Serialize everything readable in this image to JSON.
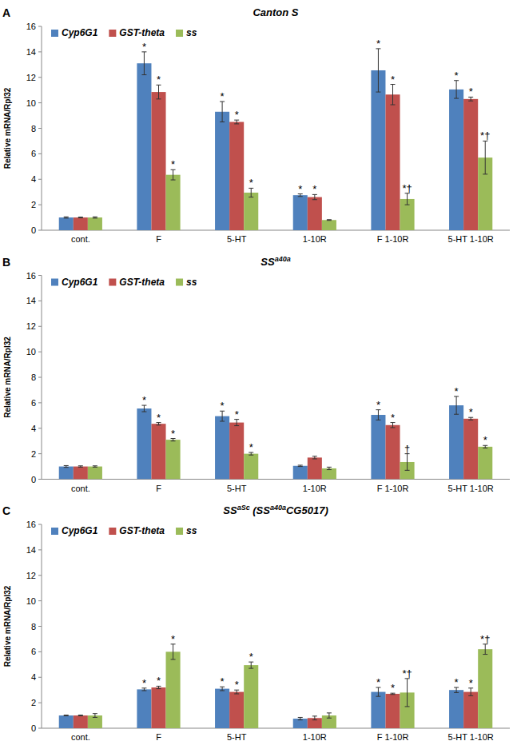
{
  "chart_data": [
    {
      "type": "bar",
      "label": "A",
      "title": [
        {
          "text": "Canton S"
        }
      ],
      "y_label": "Relative mRNA/Rpl32",
      "categories": [
        "cont.",
        "F",
        "5-HT",
        "1-10R",
        "F 1-10R",
        "5-HT 1-10R"
      ],
      "ylim": [
        0,
        16
      ],
      "yticks": [
        0,
        2,
        4,
        6,
        8,
        10,
        12,
        14,
        16
      ],
      "grid": false,
      "legend": "upper left",
      "series": [
        {
          "name": "Cyp6G1",
          "color": "#4f81bd",
          "values": [
            1.0,
            13.1,
            9.3,
            2.75,
            12.55,
            11.05
          ],
          "errors": [
            0.05,
            0.9,
            0.8,
            0.1,
            1.7,
            0.7
          ],
          "significance": [
            null,
            "*",
            "*",
            "*",
            "*",
            "*"
          ]
        },
        {
          "name": "GST-theta",
          "color": "#c0504d",
          "values": [
            1.0,
            10.85,
            8.5,
            2.6,
            10.65,
            10.3
          ],
          "errors": [
            0.03,
            0.55,
            0.15,
            0.2,
            0.8,
            0.15
          ],
          "significance": [
            null,
            "*",
            "*",
            "*",
            "*",
            "*"
          ]
        },
        {
          "name": "ss",
          "color": "#9bbb59",
          "values": [
            1.0,
            4.35,
            2.95,
            0.8,
            2.45,
            5.7
          ],
          "errors": [
            0.05,
            0.4,
            0.35,
            0.03,
            0.45,
            1.3
          ],
          "significance": [
            null,
            "*",
            "*",
            null,
            "*†",
            "*†"
          ]
        }
      ]
    },
    {
      "type": "bar",
      "label": "B",
      "title": [
        {
          "text": "SS"
        },
        {
          "text": "a40a",
          "sup": true
        }
      ],
      "y_label": "Relative mRNA/Rpl32",
      "categories": [
        "cont.",
        "F",
        "5-HT",
        "1-10R",
        "F 1-10R",
        "5-HT 1-10R"
      ],
      "ylim": [
        0,
        16
      ],
      "yticks": [
        0,
        2,
        4,
        6,
        8,
        10,
        12,
        14,
        16
      ],
      "grid": false,
      "legend": "upper left",
      "series": [
        {
          "name": "Cyp6G1",
          "color": "#4f81bd",
          "values": [
            1.0,
            5.55,
            4.95,
            1.05,
            5.05,
            5.8
          ],
          "errors": [
            0.07,
            0.25,
            0.4,
            0.05,
            0.4,
            0.7
          ],
          "significance": [
            null,
            "*",
            "*",
            null,
            "*",
            "*"
          ]
        },
        {
          "name": "GST-theta",
          "color": "#c0504d",
          "values": [
            1.0,
            4.35,
            4.45,
            1.7,
            4.25,
            4.75
          ],
          "errors": [
            0.05,
            0.1,
            0.25,
            0.1,
            0.2,
            0.1
          ],
          "significance": [
            null,
            "*",
            "*",
            null,
            "*",
            "*"
          ]
        },
        {
          "name": "ss",
          "color": "#9bbb59",
          "values": [
            1.0,
            3.1,
            2.0,
            0.85,
            1.35,
            2.55
          ],
          "errors": [
            0.05,
            0.1,
            0.1,
            0.1,
            0.65,
            0.1
          ],
          "significance": [
            null,
            "*",
            "*",
            null,
            "†",
            "*"
          ]
        }
      ]
    },
    {
      "type": "bar",
      "label": "C",
      "title": [
        {
          "text": "SS"
        },
        {
          "text": "aSc",
          "sup": true
        },
        {
          "text": " (SS"
        },
        {
          "text": "a40a",
          "sup": true
        },
        {
          "text": "CG5017)"
        }
      ],
      "y_label": "Relative mRNA/Rpl32",
      "categories": [
        "cont.",
        "F",
        "5-HT",
        "1-10R",
        "F 1-10R",
        "5-HT 1-10R"
      ],
      "ylim": [
        0,
        16
      ],
      "yticks": [
        0,
        2,
        4,
        6,
        8,
        10,
        12,
        14,
        16
      ],
      "grid": false,
      "legend": "upper left",
      "series": [
        {
          "name": "Cyp6G1",
          "color": "#4f81bd",
          "values": [
            1.0,
            3.05,
            3.1,
            0.75,
            2.85,
            3.0
          ],
          "errors": [
            0.03,
            0.1,
            0.15,
            0.1,
            0.35,
            0.2
          ],
          "significance": [
            null,
            "*",
            "*",
            null,
            "*",
            "*"
          ]
        },
        {
          "name": "GST-theta",
          "color": "#c0504d",
          "values": [
            1.0,
            3.2,
            2.85,
            0.8,
            2.7,
            2.85
          ],
          "errors": [
            0.03,
            0.1,
            0.15,
            0.15,
            0.05,
            0.3
          ],
          "significance": [
            null,
            "*",
            "*",
            null,
            "*",
            "*"
          ]
        },
        {
          "name": "ss",
          "color": "#9bbb59",
          "values": [
            1.0,
            6.0,
            4.95,
            1.0,
            2.8,
            6.2
          ],
          "errors": [
            0.15,
            0.6,
            0.25,
            0.2,
            1.1,
            0.4
          ],
          "significance": [
            null,
            "*",
            "*",
            null,
            "*†",
            "*†"
          ]
        }
      ]
    }
  ]
}
